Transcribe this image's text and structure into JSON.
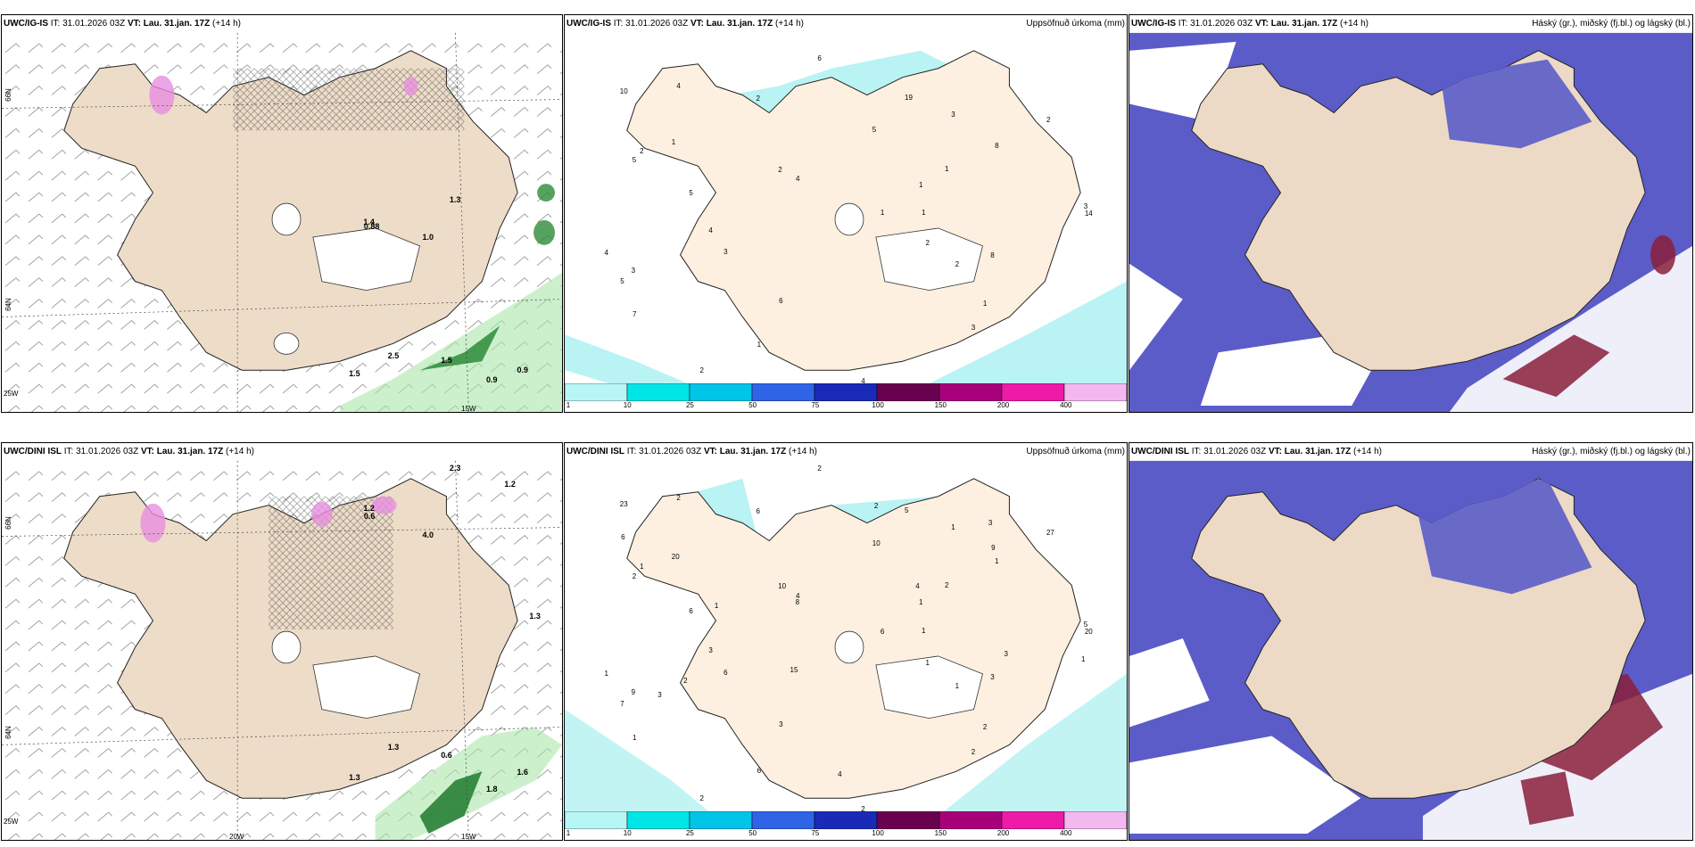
{
  "rows": [
    {
      "model": "UWC/IG-IS",
      "it": "IT: 31.01.2026 03Z",
      "vt_label": "VT:",
      "vt": "Lau. 31.jan. 17Z",
      "lead": "(+14 h)",
      "precip_title": "Uppsöfnuð úrkoma (mm)",
      "cloud_title": "Háský (gr.), miðský (fj.bl.) og lágský (bl.)",
      "wind_values": [
        "1.5",
        "0.9",
        "1.5",
        "1.3",
        "0.9",
        "0.88",
        "2.5",
        "1.4",
        "1.0"
      ],
      "precip_values": [
        "2",
        "4",
        "19",
        "1",
        "1",
        "2",
        "5",
        "2",
        "2",
        "3",
        "14",
        "10",
        "3",
        "4",
        "1",
        "1",
        "5",
        "8",
        "5",
        "8",
        "6",
        "2",
        "2",
        "2",
        "1",
        "4",
        "7",
        "4",
        "4",
        "3",
        "3",
        "3",
        "6",
        "1",
        "5",
        "1"
      ]
    },
    {
      "model": "UWC/DINI ISL",
      "it": "IT: 31.01.2026 03Z",
      "vt_label": "VT:",
      "vt": "Lau. 31.jan. 17Z",
      "lead": "(+14 h)",
      "precip_title": "Uppsöfnuð úrkoma (mm)",
      "cloud_title": "Háský (gr.), miðský (fj.bl.) og lágský (bl.)",
      "wind_values": [
        "0.6",
        "1.8",
        "1.3",
        "2.3",
        "1.6",
        "0.6",
        "1.3",
        "1.2",
        "4.0",
        "1.3",
        "1.2"
      ],
      "precip_values": [
        "2",
        "1",
        "5",
        "20",
        "2",
        "6",
        "10",
        "27",
        "10",
        "1",
        "20",
        "23",
        "5",
        "3",
        "2",
        "1",
        "7",
        "3",
        "2",
        "1",
        "2",
        "1",
        "1",
        "1",
        "1",
        "2",
        "1",
        "4",
        "2",
        "2",
        "6",
        "9",
        "3",
        "6",
        "6",
        "6",
        "4",
        "2",
        "1",
        "3",
        "15",
        "2",
        "8",
        "3",
        "4",
        "9",
        "3",
        "6",
        "1"
      ]
    }
  ],
  "axes": {
    "lat_top": "66N",
    "lat_bottom": "64N",
    "lon_left": "25W",
    "lon_mid": "20W",
    "lon_right": "15W"
  },
  "colorbar": {
    "ticks": [
      "1",
      "10",
      "25",
      "50",
      "75",
      "100",
      "150",
      "200",
      "400"
    ],
    "colors": [
      "#b8f6f6",
      "#00e6e6",
      "#00c4e8",
      "#2f64e6",
      "#1a2ab8",
      "#6a0050",
      "#a8007a",
      "#ee1aa8",
      "#f4b8f0"
    ]
  },
  "colors": {
    "land_wind": "#eddcc8",
    "land_precip": "#fdf0e0",
    "land_cloud": "#ecd9c6",
    "mid_cloud": "#5b5cc8",
    "low_cloud": "#3f6be0",
    "high_cloud": "#8a1f3a",
    "precip_green": "#46b94c",
    "precip_light": "#a8f0f0"
  }
}
